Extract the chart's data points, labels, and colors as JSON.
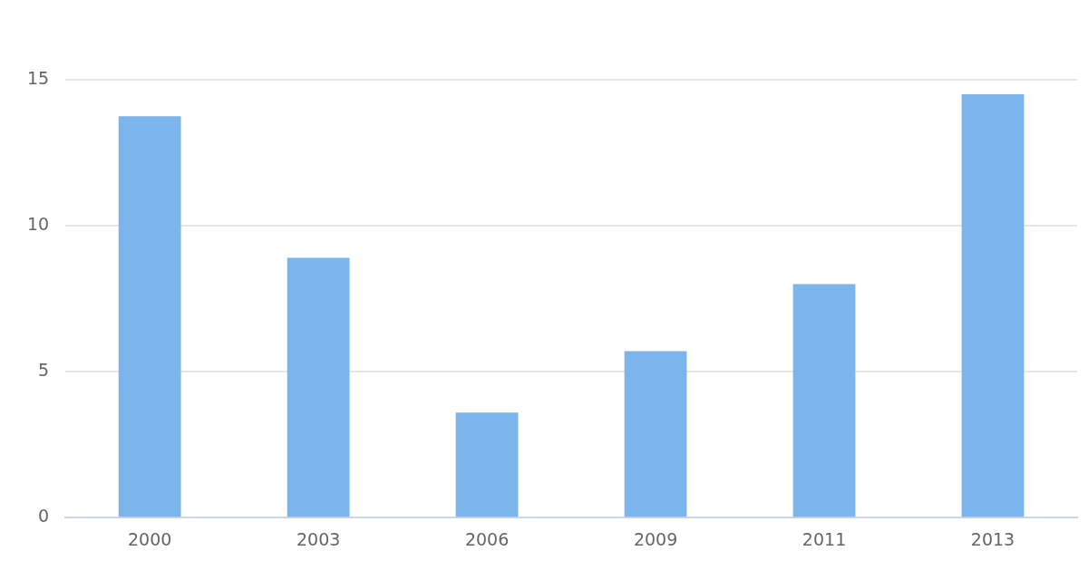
{
  "chart_data": {
    "type": "bar",
    "categories": [
      "2000",
      "2003",
      "2006",
      "2009",
      "2011",
      "2013"
    ],
    "values": [
      13.75,
      8.9,
      3.6,
      5.7,
      8.0,
      14.5
    ],
    "color": "#7cb5ec",
    "ylim": [
      0,
      15
    ],
    "yticks": [
      0,
      5,
      10,
      15
    ],
    "grid": "y",
    "legend": false
  }
}
